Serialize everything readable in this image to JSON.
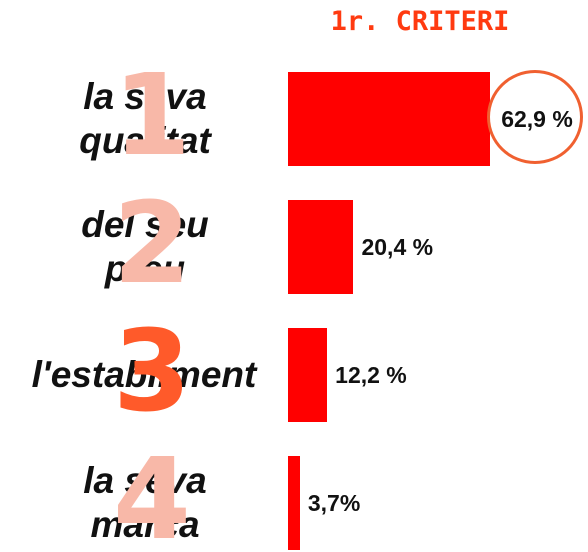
{
  "chart_data": {
    "type": "bar",
    "orientation": "horizontal",
    "title": "1r. CRITERI",
    "categories": [
      "la seva qualitat",
      "del seu preu",
      "l'establiment",
      "la seva marca"
    ],
    "rank_labels": [
      "1",
      "2",
      "3",
      "4"
    ],
    "values": [
      62.9,
      20.4,
      12.2,
      3.7
    ],
    "value_labels": [
      "62,9 %",
      "20,4 %",
      "12,2 %",
      "3,7%"
    ],
    "color": "#ff0000"
  }
}
